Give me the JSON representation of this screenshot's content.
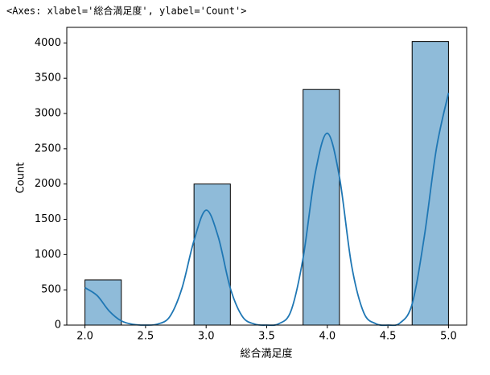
{
  "chart_data": {
    "type": "histogram",
    "title": "<Axes: xlabel='総合満足度', ylabel='Count'>",
    "xlabel": "総合満足度",
    "ylabel": "Count",
    "bins": [
      2.0,
      2.3,
      2.6,
      2.9,
      3.2,
      3.5,
      3.8,
      4.1,
      4.4,
      4.7,
      5.0
    ],
    "values": [
      640,
      0,
      0,
      2000,
      0,
      0,
      3340,
      0,
      0,
      4020
    ],
    "color": "#8fbbd9",
    "edgecolor": "#000000",
    "kde": {
      "color": "#1f77b4",
      "x": [
        2.0,
        2.1,
        2.2,
        2.3,
        2.4,
        2.5,
        2.6,
        2.7,
        2.8,
        2.9,
        3.0,
        3.1,
        3.2,
        3.3,
        3.4,
        3.5,
        3.6,
        3.7,
        3.8,
        3.9,
        4.0,
        4.1,
        4.2,
        4.3,
        4.4,
        4.5,
        4.6,
        4.7,
        4.8,
        4.9,
        5.0
      ],
      "values": [
        530,
        420,
        200,
        60,
        10,
        0,
        15,
        120,
        520,
        1200,
        1630,
        1250,
        520,
        120,
        15,
        0,
        20,
        200,
        950,
        2150,
        2720,
        2100,
        850,
        180,
        20,
        0,
        30,
        300,
        1250,
        2500,
        3290
      ]
    },
    "xlim": [
      1.85,
      5.15
    ],
    "ylim": [
      0,
      4221
    ],
    "xticks": [
      {
        "value": 2,
        "label": "2.0"
      },
      2.5,
      {
        "value": 3,
        "label": "3.0"
      },
      3.5,
      {
        "value": 4,
        "label": "4.0"
      },
      4.5,
      {
        "value": 5,
        "label": "5.0"
      }
    ],
    "yticks": [
      0,
      500,
      1000,
      1500,
      2000,
      2500,
      3000,
      3500,
      4000
    ]
  }
}
